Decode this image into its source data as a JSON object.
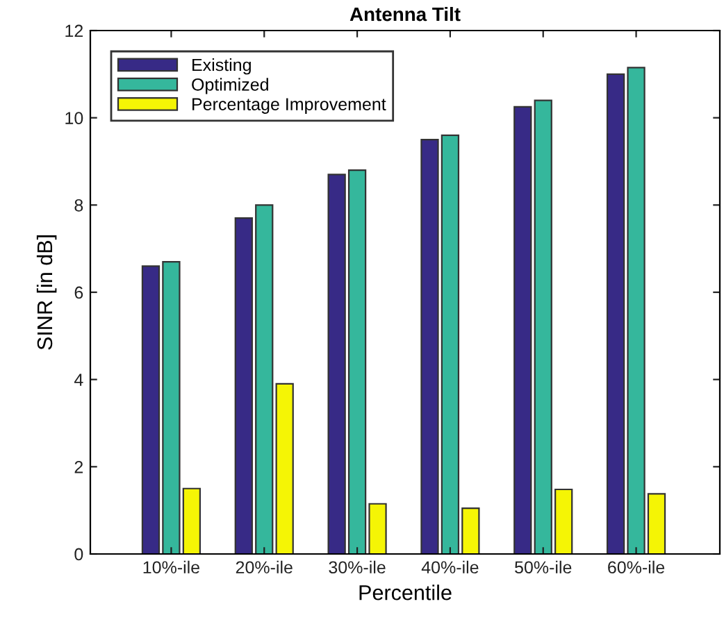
{
  "chart_data": {
    "type": "bar",
    "title": "Antenna Tilt",
    "xlabel": "Percentile",
    "ylabel": "SINR [in dB]",
    "categories": [
      "10%-ile",
      "20%-ile",
      "30%-ile",
      "40%-ile",
      "50%-ile",
      "60%-ile"
    ],
    "series": [
      {
        "name": "Existing",
        "color": "#372a86",
        "values": [
          6.6,
          7.7,
          8.7,
          9.5,
          10.25,
          11.0
        ]
      },
      {
        "name": "Optimized",
        "color": "#35b79c",
        "values": [
          6.7,
          8.0,
          8.8,
          9.6,
          10.4,
          11.15
        ]
      },
      {
        "name": "Percentage Improvement",
        "color": "#f5f505",
        "values": [
          1.5,
          3.9,
          1.15,
          1.05,
          1.48,
          1.38
        ]
      }
    ],
    "ylim": [
      0,
      12
    ],
    "yticks": [
      0,
      2,
      4,
      6,
      8,
      10,
      12
    ],
    "grid": false,
    "legend": "top left"
  }
}
